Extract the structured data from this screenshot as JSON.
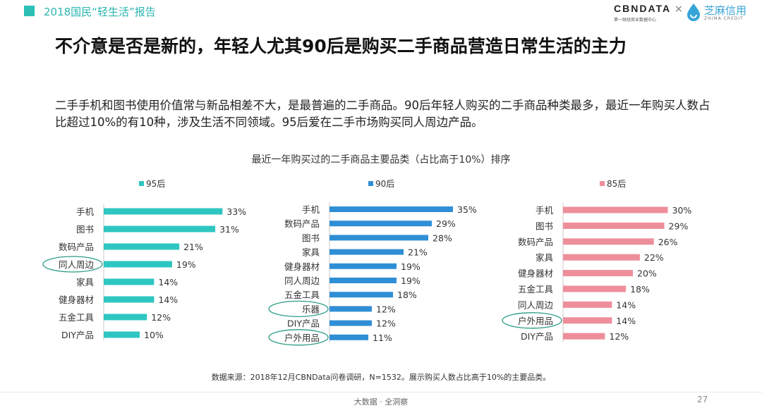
{
  "header": {
    "title": "2018国民“轻生活”报告"
  },
  "logos": {
    "cbn": "CBNDATA",
    "cbn_sub": "第一财经商业数据中心",
    "times": "×",
    "zhima": "芝麻信用",
    "zhima_sub": "ZHIMA CREDIT"
  },
  "main_title": "不介意是否是新的，年轻人尤其90后是购买二手商品营造日常生活的主力",
  "description": "二手手机和图书使用价值常与新品相差不大，是最普遍的二手商品。90后年轻人购买的二手商品种类最多，最近一年购买人数占比超过10%的有10种，涉及生活不同领域。95后爱在二手市场购买同人周边产品。",
  "chart_title": "最近一年购买过的二手商品主要品类（占比高于10%）排序",
  "chart_data": [
    {
      "type": "bar",
      "orientation": "horizontal",
      "legend": "95后",
      "color": "#2ec6c1",
      "categories": [
        "手机",
        "图书",
        "数码产品",
        "同人周边",
        "家具",
        "健身器材",
        "五金工具",
        "DIY产品"
      ],
      "values": [
        33,
        31,
        21,
        19,
        14,
        14,
        12,
        10
      ],
      "unit": "%",
      "highlighted": [
        "同人周边"
      ]
    },
    {
      "type": "bar",
      "orientation": "horizontal",
      "legend": "90后",
      "color": "#2f8fd6",
      "categories": [
        "手机",
        "数码产品",
        "图书",
        "家具",
        "健身器材",
        "同人周边",
        "五金工具",
        "乐器",
        "DIY产品",
        "户外用品"
      ],
      "values": [
        35,
        29,
        28,
        21,
        19,
        19,
        18,
        12,
        12,
        11
      ],
      "unit": "%",
      "highlighted": [
        "乐器",
        "户外用品"
      ]
    },
    {
      "type": "bar",
      "orientation": "horizontal",
      "legend": "85后",
      "color": "#ee8e9b",
      "categories": [
        "手机",
        "图书",
        "数码产品",
        "家具",
        "健身器材",
        "五金工具",
        "同人周边",
        "户外用品",
        "DIY产品"
      ],
      "values": [
        30,
        29,
        26,
        22,
        20,
        18,
        14,
        14,
        12
      ],
      "unit": "%",
      "highlighted": [
        "户外用品"
      ]
    }
  ],
  "footnote": "数据来源：2018年12月CBNData问卷调研，N=1532。展示购买人数占比高于10%的主要品类。",
  "footer": {
    "center": "大数据 · 全洞察",
    "page": "27"
  }
}
